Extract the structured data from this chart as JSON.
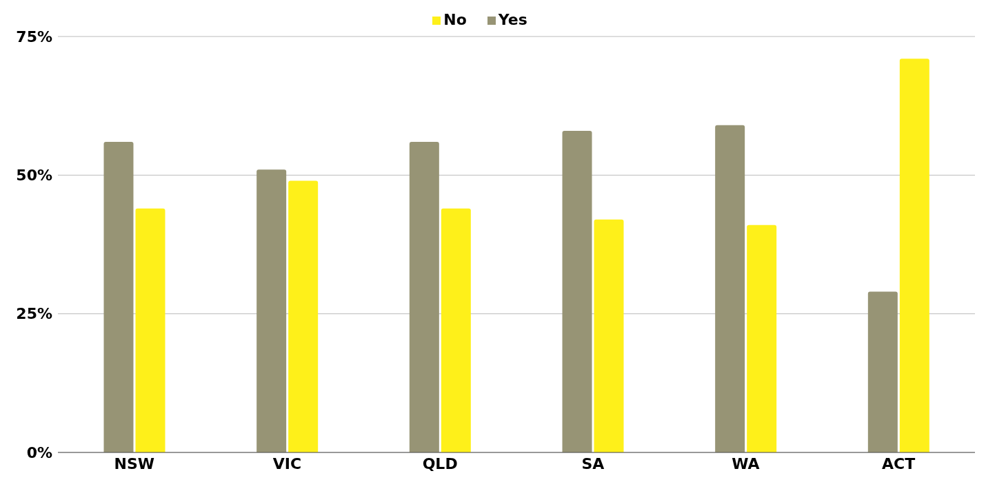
{
  "chart_data": {
    "type": "bar",
    "categories": [
      "NSW",
      "VIC",
      "QLD",
      "SA",
      "WA",
      "ACT"
    ],
    "series": [
      {
        "name": "Yes",
        "color": "#979475",
        "values": [
          56,
          51,
          56,
          58,
          59,
          29
        ]
      },
      {
        "name": "No",
        "color": "#fef01a",
        "values": [
          44,
          49,
          44,
          42,
          41,
          71
        ]
      }
    ],
    "ylim": [
      0,
      75
    ],
    "yticks": [
      {
        "value": 0,
        "label": "0%"
      },
      {
        "value": 25,
        "label": "25%"
      },
      {
        "value": 50,
        "label": "50%"
      },
      {
        "value": 75,
        "label": "75%"
      }
    ],
    "grid": "y",
    "legend": "top"
  }
}
